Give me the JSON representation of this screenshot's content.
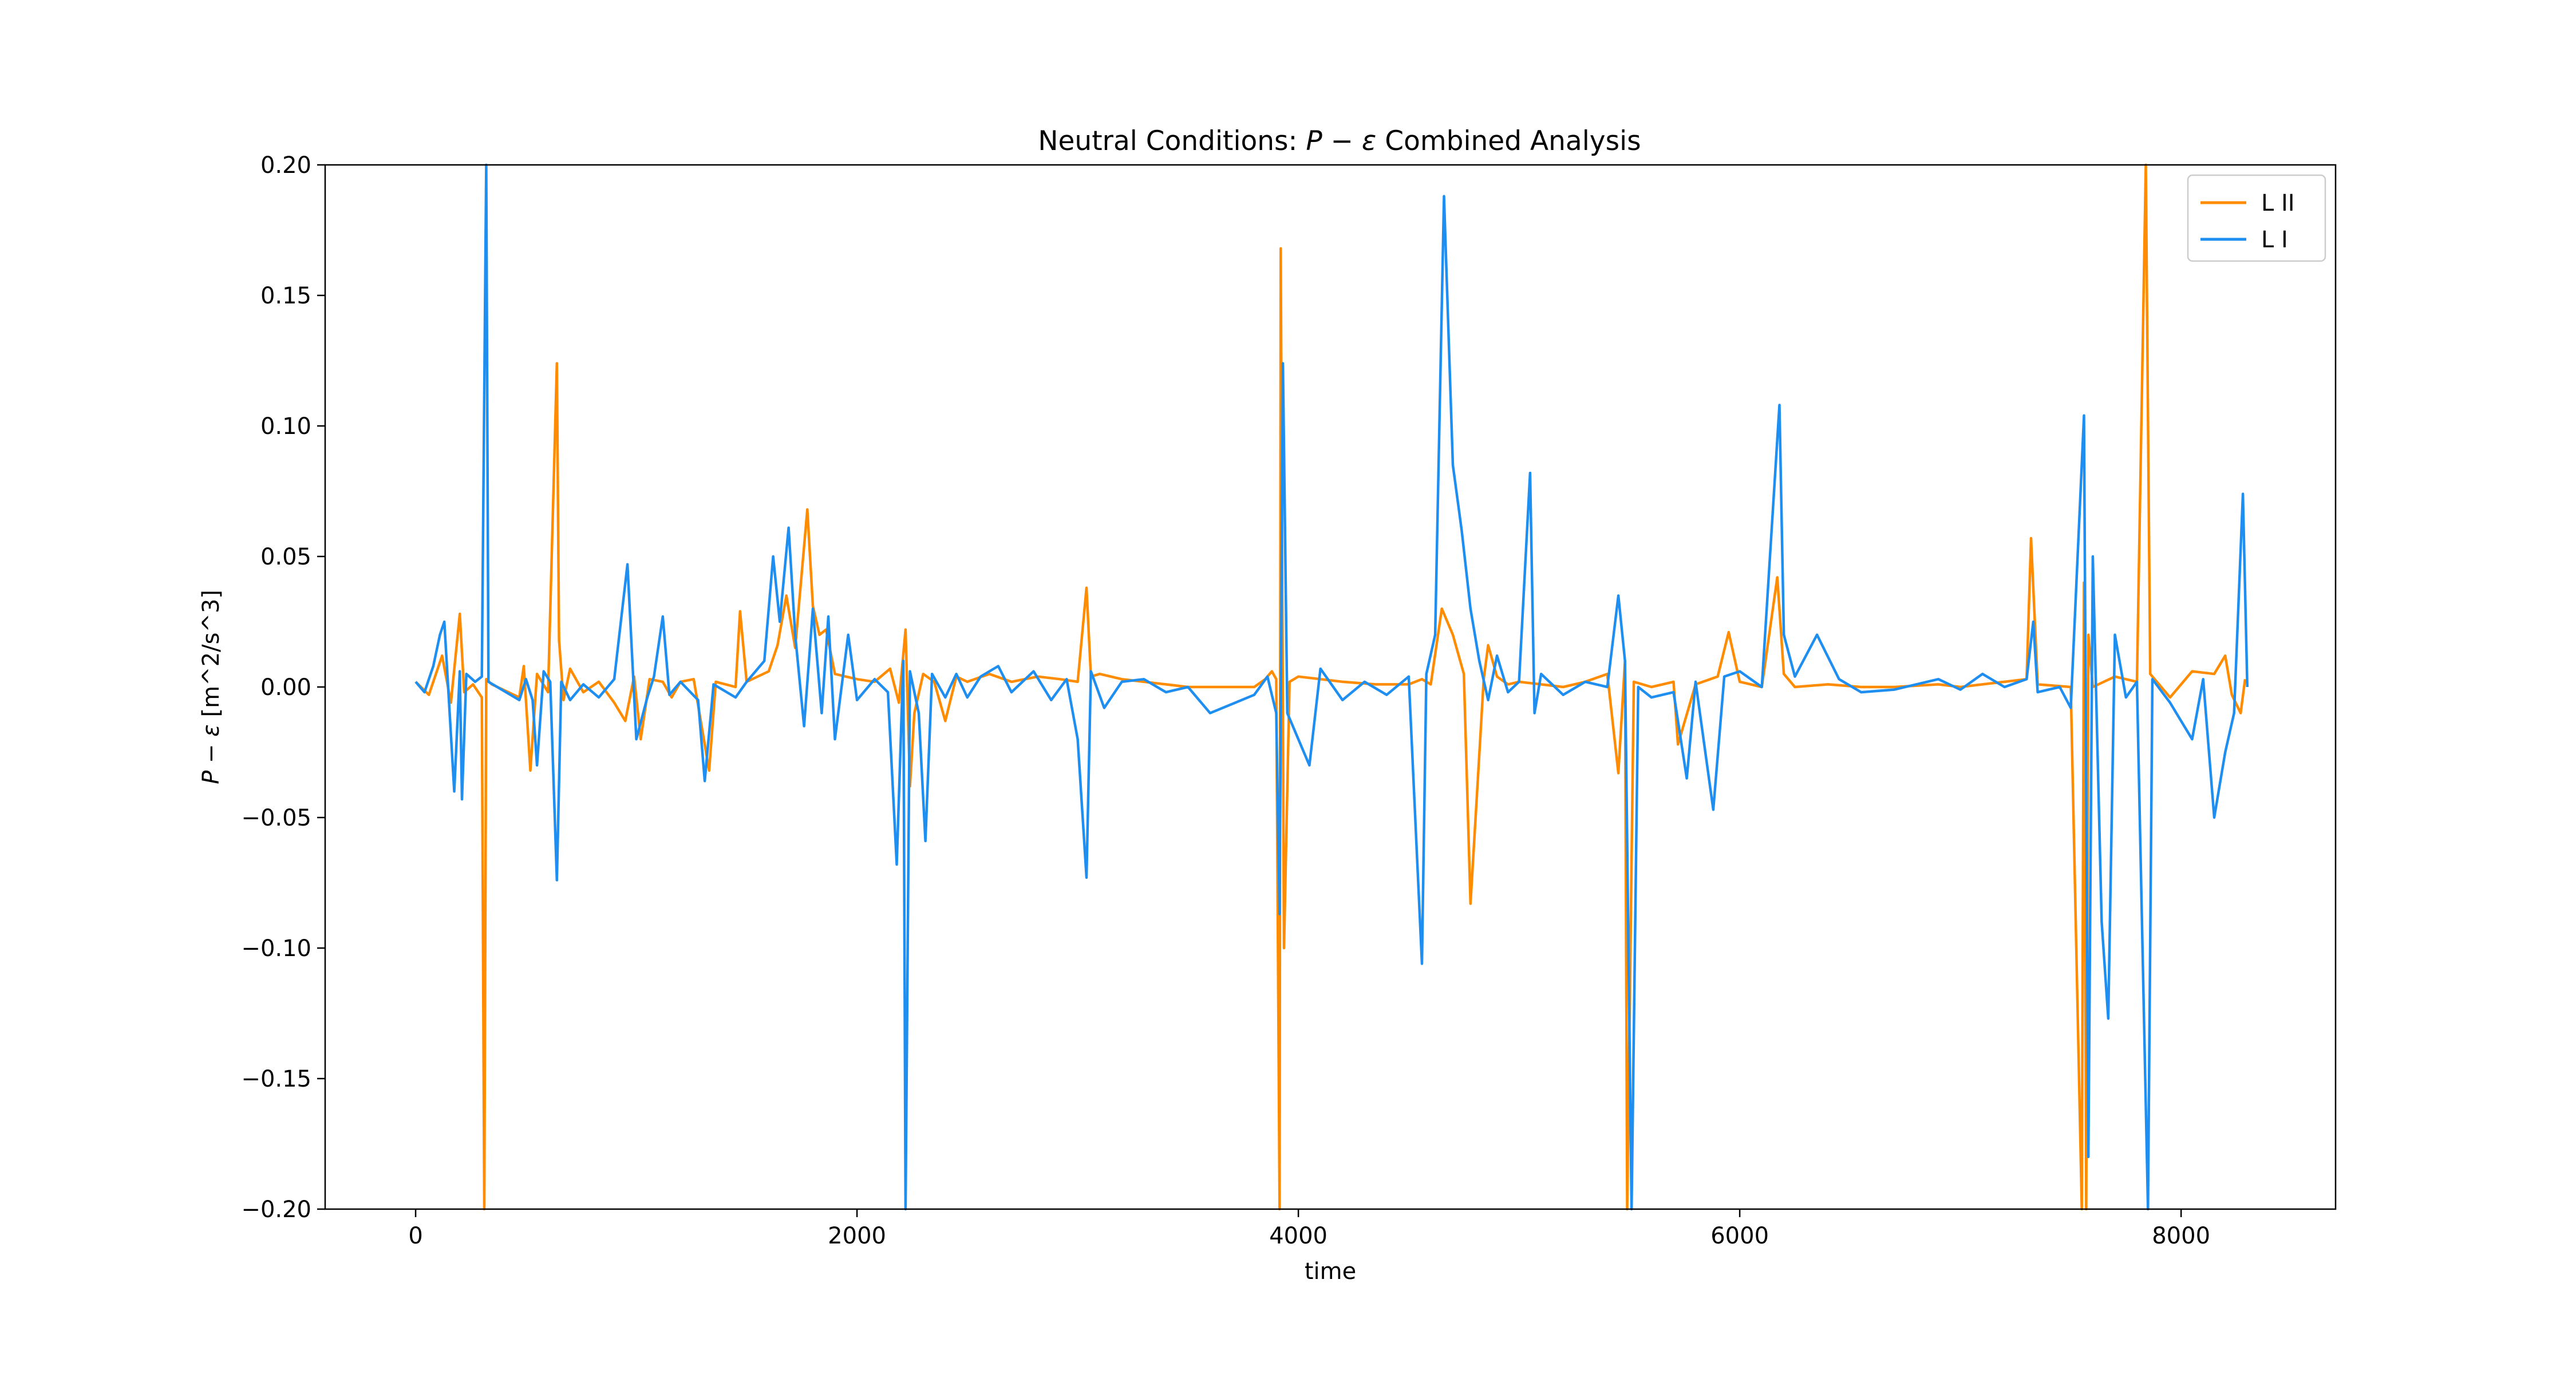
{
  "chart_data": {
    "type": "line",
    "title": "Neutral Conditions: P − ε Combined Analysis",
    "title_parts": {
      "before": "Neutral Conditions: ",
      "math": "P − ε",
      "after": " Combined Analysis"
    },
    "xlabel": "time",
    "ylabel": "P − ε [m^2/s^3]",
    "ylabel_parts": {
      "math": "P − ε",
      "after": " [m^2/s^3]"
    },
    "xlim": [
      -410,
      8700
    ],
    "ylim": [
      -0.2,
      0.2
    ],
    "xticks": [
      0,
      2000,
      4000,
      6000,
      8000
    ],
    "xtick_labels": [
      "0",
      "2000",
      "4000",
      "6000",
      "8000"
    ],
    "yticks": [
      -0.2,
      -0.15,
      -0.1,
      -0.05,
      0.0,
      0.05,
      0.1,
      0.15,
      0.2
    ],
    "ytick_labels": [
      "−0.20",
      "−0.15",
      "−0.10",
      "−0.05",
      "0.00",
      "0.05",
      "0.10",
      "0.15",
      "0.20"
    ],
    "grid": false,
    "legend_position": "top-right",
    "series": [
      {
        "name": "L II",
        "color": "#ff8c00",
        "points": [
          [
            0,
            0.002
          ],
          [
            60,
            -0.003
          ],
          [
            120,
            0.012
          ],
          [
            160,
            -0.006
          ],
          [
            200,
            0.028
          ],
          [
            220,
            -0.002
          ],
          [
            260,
            0.001
          ],
          [
            300,
            -0.004
          ],
          [
            311,
            -0.2
          ],
          [
            320,
            0.003
          ],
          [
            345,
            0.001
          ],
          [
            470,
            -0.004
          ],
          [
            490,
            0.008
          ],
          [
            520,
            -0.032
          ],
          [
            550,
            0.005
          ],
          [
            600,
            -0.002
          ],
          [
            640,
            0.124
          ],
          [
            650,
            0.018
          ],
          [
            670,
            -0.005
          ],
          [
            700,
            0.007
          ],
          [
            760,
            -0.002
          ],
          [
            830,
            0.002
          ],
          [
            900,
            -0.006
          ],
          [
            950,
            -0.013
          ],
          [
            990,
            0.004
          ],
          [
            1020,
            -0.02
          ],
          [
            1060,
            0.003
          ],
          [
            1120,
            0.002
          ],
          [
            1160,
            -0.004
          ],
          [
            1200,
            0.002
          ],
          [
            1260,
            0.003
          ],
          [
            1330,
            -0.032
          ],
          [
            1360,
            0.002
          ],
          [
            1450,
            0.0
          ],
          [
            1470,
            0.029
          ],
          [
            1500,
            0.002
          ],
          [
            1600,
            0.006
          ],
          [
            1640,
            0.016
          ],
          [
            1680,
            0.035
          ],
          [
            1720,
            0.015
          ],
          [
            1750,
            0.044
          ],
          [
            1775,
            0.068
          ],
          [
            1800,
            0.031
          ],
          [
            1830,
            0.02
          ],
          [
            1860,
            0.022
          ],
          [
            1900,
            0.005
          ],
          [
            1950,
            0.004
          ],
          [
            2000,
            0.003
          ],
          [
            2080,
            0.002
          ],
          [
            2150,
            0.007
          ],
          [
            2190,
            -0.006
          ],
          [
            2220,
            0.022
          ],
          [
            2240,
            -0.038
          ],
          [
            2260,
            -0.01
          ],
          [
            2300,
            0.005
          ],
          [
            2350,
            0.002
          ],
          [
            2400,
            -0.013
          ],
          [
            2450,
            0.004
          ],
          [
            2500,
            0.002
          ],
          [
            2600,
            0.005
          ],
          [
            2700,
            0.002
          ],
          [
            2820,
            0.004
          ],
          [
            2920,
            0.003
          ],
          [
            3000,
            0.002
          ],
          [
            3040,
            0.038
          ],
          [
            3060,
            0.004
          ],
          [
            3100,
            0.005
          ],
          [
            3200,
            0.003
          ],
          [
            3300,
            0.002
          ],
          [
            3400,
            0.001
          ],
          [
            3500,
            0.0
          ],
          [
            3600,
            0.0
          ],
          [
            3800,
            0.0
          ],
          [
            3850,
            0.003
          ],
          [
            3880,
            0.006
          ],
          [
            3900,
            0.003
          ],
          [
            3915,
            -0.2
          ],
          [
            3920,
            0.168
          ],
          [
            3935,
            -0.1
          ],
          [
            3960,
            0.002
          ],
          [
            4000,
            0.004
          ],
          [
            4100,
            0.003
          ],
          [
            4200,
            0.002
          ],
          [
            4350,
            0.001
          ],
          [
            4500,
            0.001
          ],
          [
            4560,
            0.003
          ],
          [
            4600,
            0.001
          ],
          [
            4650,
            0.03
          ],
          [
            4700,
            0.02
          ],
          [
            4750,
            0.005
          ],
          [
            4780,
            -0.083
          ],
          [
            4810,
            -0.04
          ],
          [
            4840,
            0.003
          ],
          [
            4860,
            0.016
          ],
          [
            4900,
            0.004
          ],
          [
            4950,
            0.001
          ],
          [
            5000,
            0.002
          ],
          [
            5100,
            0.001
          ],
          [
            5200,
            0.0
          ],
          [
            5300,
            0.002
          ],
          [
            5400,
            0.005
          ],
          [
            5450,
            -0.033
          ],
          [
            5480,
            0.01
          ],
          [
            5490,
            -0.2
          ],
          [
            5520,
            0.002
          ],
          [
            5600,
            0.0
          ],
          [
            5700,
            0.002
          ],
          [
            5720,
            -0.022
          ],
          [
            5800,
            0.001
          ],
          [
            5900,
            0.004
          ],
          [
            5950,
            0.021
          ],
          [
            6000,
            0.002
          ],
          [
            6100,
            0.0
          ],
          [
            6170,
            0.042
          ],
          [
            6200,
            0.005
          ],
          [
            6250,
            0.0
          ],
          [
            6400,
            0.001
          ],
          [
            6550,
            0.0
          ],
          [
            6700,
            0.0
          ],
          [
            6900,
            0.001
          ],
          [
            7000,
            0.0
          ],
          [
            7100,
            0.001
          ],
          [
            7200,
            0.002
          ],
          [
            7300,
            0.003
          ],
          [
            7320,
            0.057
          ],
          [
            7350,
            0.001
          ],
          [
            7500,
            0.0
          ],
          [
            7550,
            -0.2
          ],
          [
            7560,
            0.04
          ],
          [
            7570,
            -0.2
          ],
          [
            7580,
            0.02
          ],
          [
            7600,
            0.0
          ],
          [
            7700,
            0.004
          ],
          [
            7800,
            0.002
          ],
          [
            7840,
            0.2
          ],
          [
            7860,
            0.005
          ],
          [
            7950,
            -0.004
          ],
          [
            8050,
            0.006
          ],
          [
            8150,
            0.005
          ],
          [
            8200,
            0.012
          ],
          [
            8230,
            -0.003
          ],
          [
            8270,
            -0.01
          ],
          [
            8290,
            0.003
          ]
        ]
      },
      {
        "name": "L I",
        "color": "#1f8ef1",
        "points": [
          [
            0,
            0.002
          ],
          [
            40,
            -0.002
          ],
          [
            80,
            0.008
          ],
          [
            110,
            0.02
          ],
          [
            130,
            0.025
          ],
          [
            150,
            -0.004
          ],
          [
            175,
            -0.04
          ],
          [
            200,
            0.006
          ],
          [
            210,
            -0.043
          ],
          [
            230,
            0.005
          ],
          [
            270,
            0.002
          ],
          [
            300,
            0.004
          ],
          [
            320,
            0.2
          ],
          [
            330,
            0.002
          ],
          [
            470,
            -0.005
          ],
          [
            500,
            0.003
          ],
          [
            530,
            -0.005
          ],
          [
            550,
            -0.03
          ],
          [
            580,
            0.006
          ],
          [
            610,
            0.002
          ],
          [
            640,
            -0.074
          ],
          [
            660,
            0.002
          ],
          [
            700,
            -0.005
          ],
          [
            760,
            0.001
          ],
          [
            830,
            -0.004
          ],
          [
            900,
            0.003
          ],
          [
            960,
            0.047
          ],
          [
            1000,
            -0.02
          ],
          [
            1050,
            -0.004
          ],
          [
            1080,
            0.004
          ],
          [
            1120,
            0.027
          ],
          [
            1150,
            -0.003
          ],
          [
            1200,
            0.002
          ],
          [
            1280,
            -0.005
          ],
          [
            1310,
            -0.036
          ],
          [
            1350,
            0.001
          ],
          [
            1450,
            -0.004
          ],
          [
            1500,
            0.002
          ],
          [
            1580,
            0.01
          ],
          [
            1620,
            0.05
          ],
          [
            1650,
            0.025
          ],
          [
            1690,
            0.061
          ],
          [
            1720,
            0.02
          ],
          [
            1760,
            -0.015
          ],
          [
            1800,
            0.03
          ],
          [
            1840,
            -0.01
          ],
          [
            1870,
            0.027
          ],
          [
            1900,
            -0.02
          ],
          [
            1960,
            0.02
          ],
          [
            2000,
            -0.005
          ],
          [
            2080,
            0.003
          ],
          [
            2140,
            -0.002
          ],
          [
            2180,
            -0.068
          ],
          [
            2210,
            0.01
          ],
          [
            2220,
            -0.2
          ],
          [
            2240,
            0.006
          ],
          [
            2280,
            -0.01
          ],
          [
            2310,
            -0.059
          ],
          [
            2340,
            0.005
          ],
          [
            2400,
            -0.004
          ],
          [
            2450,
            0.005
          ],
          [
            2500,
            -0.004
          ],
          [
            2560,
            0.004
          ],
          [
            2640,
            0.008
          ],
          [
            2700,
            -0.002
          ],
          [
            2800,
            0.006
          ],
          [
            2880,
            -0.005
          ],
          [
            2950,
            0.003
          ],
          [
            3000,
            -0.02
          ],
          [
            3040,
            -0.073
          ],
          [
            3060,
            0.006
          ],
          [
            3120,
            -0.008
          ],
          [
            3200,
            0.002
          ],
          [
            3300,
            0.003
          ],
          [
            3400,
            -0.002
          ],
          [
            3500,
            0.0
          ],
          [
            3600,
            -0.01
          ],
          [
            3800,
            -0.003
          ],
          [
            3860,
            0.004
          ],
          [
            3900,
            -0.01
          ],
          [
            3915,
            -0.087
          ],
          [
            3930,
            0.124
          ],
          [
            3950,
            -0.01
          ],
          [
            4000,
            -0.02
          ],
          [
            4050,
            -0.03
          ],
          [
            4100,
            0.007
          ],
          [
            4200,
            -0.005
          ],
          [
            4300,
            0.002
          ],
          [
            4400,
            -0.003
          ],
          [
            4500,
            0.004
          ],
          [
            4560,
            -0.106
          ],
          [
            4580,
            0.005
          ],
          [
            4620,
            0.02
          ],
          [
            4660,
            0.188
          ],
          [
            4700,
            0.085
          ],
          [
            4740,
            0.06
          ],
          [
            4780,
            0.03
          ],
          [
            4820,
            0.01
          ],
          [
            4860,
            -0.005
          ],
          [
            4900,
            0.012
          ],
          [
            4950,
            -0.002
          ],
          [
            5000,
            0.002
          ],
          [
            5050,
            0.082
          ],
          [
            5070,
            -0.01
          ],
          [
            5100,
            0.005
          ],
          [
            5200,
            -0.003
          ],
          [
            5300,
            0.002
          ],
          [
            5400,
            0.0
          ],
          [
            5450,
            0.035
          ],
          [
            5480,
            0.01
          ],
          [
            5510,
            -0.2
          ],
          [
            5540,
            0.0
          ],
          [
            5600,
            -0.004
          ],
          [
            5700,
            -0.002
          ],
          [
            5760,
            -0.035
          ],
          [
            5800,
            0.002
          ],
          [
            5880,
            -0.047
          ],
          [
            5930,
            0.004
          ],
          [
            6000,
            0.006
          ],
          [
            6100,
            0.0
          ],
          [
            6180,
            0.108
          ],
          [
            6200,
            0.02
          ],
          [
            6250,
            0.004
          ],
          [
            6350,
            0.02
          ],
          [
            6450,
            0.003
          ],
          [
            6550,
            -0.002
          ],
          [
            6700,
            -0.001
          ],
          [
            6900,
            0.003
          ],
          [
            7000,
            -0.001
          ],
          [
            7100,
            0.005
          ],
          [
            7200,
            0.0
          ],
          [
            7300,
            0.003
          ],
          [
            7330,
            0.025
          ],
          [
            7350,
            -0.002
          ],
          [
            7450,
            0.0
          ],
          [
            7500,
            -0.008
          ],
          [
            7560,
            0.104
          ],
          [
            7580,
            -0.18
          ],
          [
            7600,
            0.05
          ],
          [
            7640,
            -0.09
          ],
          [
            7670,
            -0.127
          ],
          [
            7700,
            0.02
          ],
          [
            7750,
            -0.004
          ],
          [
            7800,
            0.002
          ],
          [
            7850,
            -0.2
          ],
          [
            7870,
            0.003
          ],
          [
            7950,
            -0.006
          ],
          [
            8050,
            -0.02
          ],
          [
            8100,
            0.003
          ],
          [
            8150,
            -0.05
          ],
          [
            8200,
            -0.025
          ],
          [
            8240,
            -0.01
          ],
          [
            8280,
            0.074
          ],
          [
            8300,
            0.0
          ]
        ]
      }
    ]
  }
}
